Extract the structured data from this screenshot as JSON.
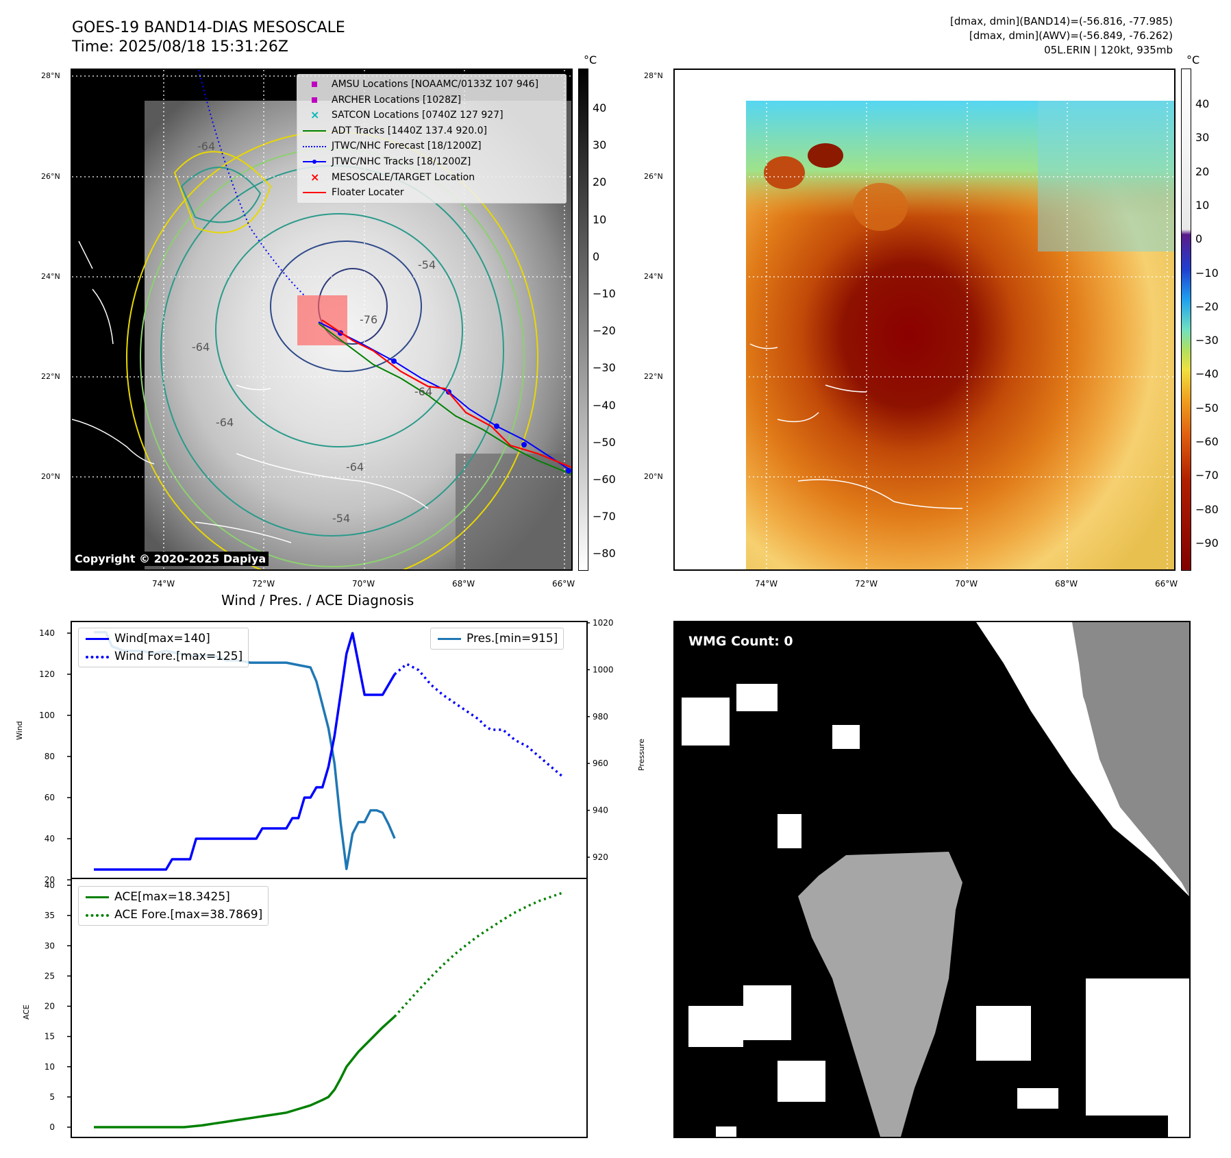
{
  "header": {
    "title_line1": "GOES-19 BAND14-DIAS MESOSCALE",
    "title_line2": "Time: 2025/08/18 15:31:26Z",
    "right_line1": "[dmax, dmin](BAND14)=(-56.816, -77.985)",
    "right_line2": "[dmax, dmin](AWV)=(-56.849, -76.262)",
    "right_line3": "05L.ERIN | 120kt, 935mb"
  },
  "map": {
    "lat_labels": [
      "28°N",
      "26°N",
      "24°N",
      "22°N",
      "20°N"
    ],
    "lon_labels": [
      "74°W",
      "72°W",
      "70°W",
      "68°W",
      "66°W"
    ],
    "copyright": "Copyright © 2020-2025 Dapiya",
    "contour_labels": [
      "-64",
      "-54",
      "-76",
      "-64",
      "-64",
      "-54",
      "-64",
      "-64"
    ],
    "legend": [
      {
        "label": "AMSU Locations [NOAAMC/0133Z 107 946]",
        "symbol": "square",
        "color": "#c000c0"
      },
      {
        "label": "ARCHER Locations [1028Z]",
        "symbol": "square",
        "color": "#c000c0"
      },
      {
        "label": "SATCON Locations [0740Z 127 927]",
        "symbol": "x",
        "color": "#00b8b8"
      },
      {
        "label": "ADT Tracks [1440Z 137.4 920.0]",
        "symbol": "line",
        "color": "#008000"
      },
      {
        "label": "JTWC/NHC Forecast [18/1200Z]",
        "symbol": "dotted",
        "color": "#0000ff"
      },
      {
        "label": "JTWC/NHC Tracks [18/1200Z]",
        "symbol": "line-dot",
        "color": "#0000ff"
      },
      {
        "label": "MESOSCALE/TARGET Location",
        "symbol": "x",
        "color": "#ff0000"
      },
      {
        "label": "Floater Locater",
        "symbol": "line",
        "color": "#ff0000"
      }
    ]
  },
  "colorbar_gray": {
    "unit": "°C",
    "ticks": [
      "40",
      "30",
      "20",
      "10",
      "0",
      "−10",
      "−20",
      "−30",
      "−40",
      "−50",
      "−60",
      "−70",
      "−80"
    ]
  },
  "colorbar_color": {
    "unit": "°C",
    "ticks": [
      "40",
      "30",
      "20",
      "10",
      "0",
      "−10",
      "−20",
      "−30",
      "−40",
      "−50",
      "−60",
      "−70",
      "−80",
      "−90"
    ]
  },
  "diag": {
    "title": "Wind / Pres. / ACE Diagnosis",
    "wind_ylabel": "Wind",
    "pres_ylabel": "Pressure",
    "ace_ylabel": "ACE",
    "wind_yticks": [
      "140",
      "120",
      "100",
      "80",
      "60",
      "40",
      "20"
    ],
    "pres_yticks": [
      "1020",
      "1000",
      "980",
      "960",
      "940",
      "920"
    ],
    "ace_yticks": [
      "40",
      "35",
      "30",
      "25",
      "20",
      "15",
      "10",
      "5",
      "0"
    ],
    "legend_wind": "Wind[max=140]",
    "legend_wind_fore": "Wind Fore.[max=125]",
    "legend_pres": "Pres.[min=915]",
    "legend_ace": "ACE[max=18.3425]",
    "legend_ace_fore": "ACE Fore.[max=38.7869]"
  },
  "wmg": {
    "label": "WMG Count: 0"
  },
  "colors": {
    "wind": "#0000ff",
    "pres": "#1f77b4",
    "ace": "#008000"
  },
  "chart_data": [
    {
      "type": "line",
      "title": "Wind / Pres. / ACE Diagnosis",
      "ylabel": "Wind",
      "ylim": [
        20,
        145
      ],
      "series": [
        {
          "name": "Wind[max=140]",
          "x": [
            0,
            4,
            7,
            8,
            9,
            10,
            11,
            12,
            13,
            14,
            15,
            16,
            17,
            18,
            19,
            20,
            21,
            22,
            23,
            24,
            25,
            26,
            27,
            28,
            29,
            30,
            31,
            32,
            33,
            34,
            35,
            36,
            37,
            38,
            39,
            40,
            41,
            42,
            43,
            44,
            45,
            46,
            47,
            48,
            49,
            50
          ],
          "values": [
            25,
            25,
            25,
            25,
            25,
            25,
            25,
            25,
            30,
            30,
            30,
            30,
            40,
            40,
            40,
            40,
            40,
            40,
            40,
            40,
            40,
            40,
            40,
            45,
            45,
            45,
            45,
            45,
            50,
            50,
            60,
            60,
            65,
            65,
            75,
            90,
            110,
            130,
            140,
            125,
            110,
            110,
            110,
            110,
            115,
            120
          ]
        },
        {
          "name": "Wind Fore.[max=125]",
          "x": [
            50,
            52,
            54,
            56,
            58,
            60,
            62,
            64,
            65,
            66,
            68,
            70,
            72,
            74,
            76,
            78
          ],
          "values": [
            120,
            125,
            122,
            115,
            110,
            106,
            102,
            98,
            95,
            93,
            93,
            88,
            85,
            80,
            75,
            70
          ]
        }
      ]
    },
    {
      "type": "line",
      "ylabel": "Pressure",
      "ylim": [
        910,
        1020
      ],
      "series": [
        {
          "name": "Pres.[min=915]",
          "x": [
            0,
            2,
            3,
            4,
            5,
            6,
            7,
            8,
            10,
            12,
            14,
            16,
            18,
            20,
            22,
            24,
            26,
            28,
            30,
            32,
            34,
            36,
            37,
            38,
            39,
            40,
            41,
            42,
            43,
            44,
            45,
            46,
            47,
            48,
            49,
            50
          ],
          "values": [
            1016,
            1016,
            1010,
            1009,
            1008,
            1008,
            1008,
            1008,
            1007,
            1008,
            1007,
            1006,
            1006,
            1006,
            1004,
            1004,
            1003,
            1003,
            1003,
            1003,
            1002,
            1001,
            995,
            985,
            975,
            960,
            935,
            915,
            930,
            935,
            935,
            940,
            940,
            939,
            934,
            928
          ]
        }
      ]
    },
    {
      "type": "line",
      "ylabel": "ACE",
      "ylim": [
        -2,
        40
      ],
      "series": [
        {
          "name": "ACE[max=18.3425]",
          "x": [
            0,
            5,
            10,
            15,
            18,
            20,
            22,
            24,
            26,
            28,
            30,
            32,
            34,
            36,
            38,
            39,
            40,
            41,
            42,
            44,
            46,
            48,
            50
          ],
          "values": [
            0,
            0,
            0,
            0,
            0.3,
            0.6,
            0.9,
            1.2,
            1.5,
            1.8,
            2.1,
            2.4,
            3,
            3.6,
            4.5,
            5,
            6.2,
            8,
            10,
            12.5,
            14.5,
            16.5,
            18.3
          ]
        },
        {
          "name": "ACE Fore.[max=38.7869]",
          "x": [
            50,
            52,
            54,
            56,
            58,
            60,
            62,
            64,
            66,
            68,
            70,
            72,
            74,
            76,
            78
          ],
          "values": [
            18.3,
            20.5,
            22.7,
            24.8,
            26.8,
            28.6,
            30.2,
            31.7,
            33.0,
            34.3,
            35.5,
            36.5,
            37.4,
            38.1,
            38.8
          ]
        }
      ]
    }
  ]
}
